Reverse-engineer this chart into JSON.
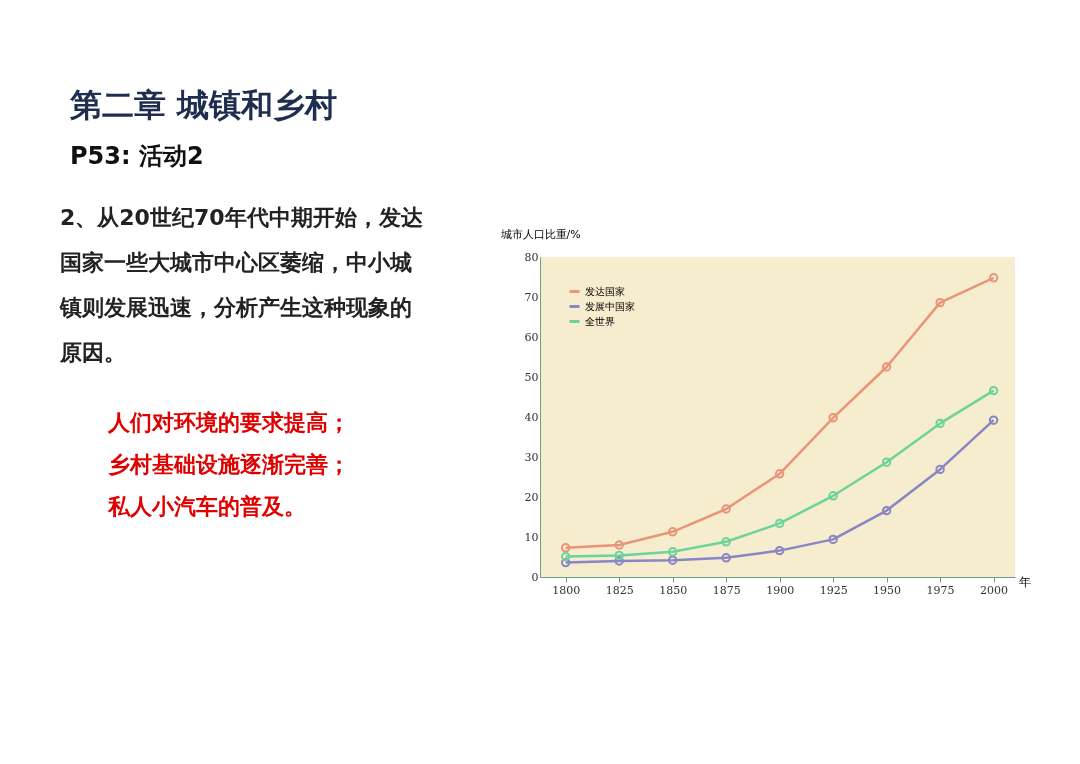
{
  "chart_data": {
    "type": "line",
    "title": "第二章  城镇和乡村",
    "subtitle": "P53: 活动2",
    "annotations": [
      "2、从20世纪70年代中期开始，发达国家一些大城市中心区萎缩，中小城镇则发展迅速，分析产生这种现象的原因。",
      "人们对环境的要求提高；",
      "乡村基础设施逐渐完善；",
      "私人小汽车的普及。"
    ],
    "xlabel": "年",
    "ylabel": "城市人口比重/%",
    "x": [
      1800,
      1825,
      1850,
      1875,
      1900,
      1925,
      1950,
      1975,
      2000
    ],
    "xlim": [
      1788,
      2010
    ],
    "xticks": [
      1800,
      1825,
      1850,
      1875,
      1900,
      1925,
      1950,
      1975,
      2000
    ],
    "ylim": [
      0,
      80
    ],
    "yticks": [
      0,
      10,
      20,
      30,
      40,
      50,
      60,
      70,
      80
    ],
    "series": [
      {
        "name": "发达国家",
        "color": "#e8957a",
        "values": [
          7.3,
          8,
          11.3,
          17,
          25.8,
          39.8,
          52.5,
          68.6,
          74.8
        ]
      },
      {
        "name": "发展中国家",
        "color": "#8a86c6",
        "values": [
          3.6,
          4,
          4.2,
          4.8,
          6.6,
          9.4,
          16.6,
          26.9,
          39.2
        ]
      },
      {
        "name": "全世界",
        "color": "#6cd49a",
        "values": [
          5.1,
          5.4,
          6.3,
          8.8,
          13.4,
          20.3,
          28.7,
          38.4,
          46.6
        ]
      }
    ],
    "grid": false,
    "legend": "top left",
    "marker": "circle",
    "line_style": "solid"
  }
}
